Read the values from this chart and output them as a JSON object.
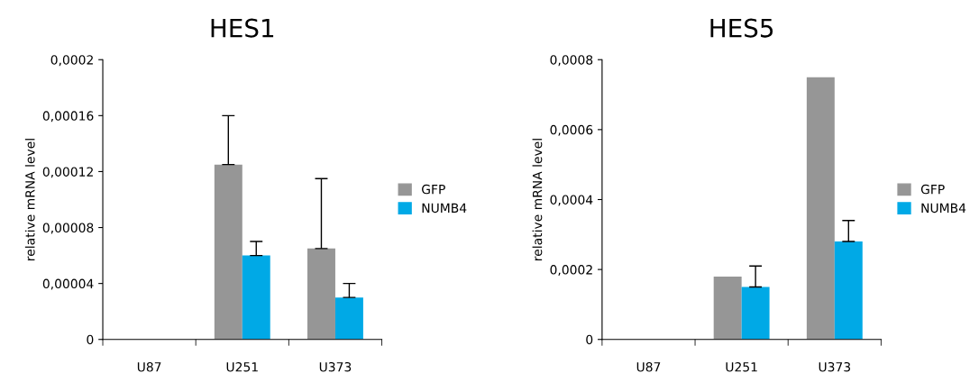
{
  "chart_data": [
    {
      "type": "bar",
      "title": "HES1",
      "ylabel": "relative mRNA level",
      "categories": [
        "U87",
        "U251",
        "U373"
      ],
      "series": [
        {
          "name": "GFP",
          "color": "#969696",
          "values": [
            0,
            0.000125,
            6.5e-05
          ],
          "errors": [
            null,
            [
              0.000125,
              0.00016
            ],
            [
              6.5e-05,
              0.000115
            ]
          ]
        },
        {
          "name": "NUMB4",
          "color": "#00a9e6",
          "values": [
            0,
            6e-05,
            3e-05
          ],
          "errors": [
            null,
            [
              6e-05,
              7e-05
            ],
            [
              3e-05,
              4e-05
            ]
          ]
        }
      ],
      "ylim": [
        0,
        0.0002
      ],
      "yticks": [
        0,
        {
          "value": 4e-05,
          "label": "0,00004"
        },
        {
          "value": 8e-05,
          "label": "0,00008"
        },
        {
          "value": 0.00012,
          "label": "0,00012"
        },
        {
          "value": 0.00016,
          "label": "0,00016"
        },
        {
          "value": 0.0002,
          "label": "0,0002"
        }
      ],
      "legend": "right",
      "grid": false
    },
    {
      "type": "bar",
      "title": "HES5",
      "ylabel": "relative mRNA level",
      "categories": [
        "U87",
        "U251",
        "U373"
      ],
      "series": [
        {
          "name": "GFP",
          "color": "#969696",
          "values": [
            0,
            0.00018,
            0.00075
          ]
        },
        {
          "name": "NUMB4",
          "color": "#00a9e6",
          "values": [
            0,
            0.00015,
            0.00028
          ],
          "errors": [
            null,
            [
              0.00015,
              0.00021
            ],
            [
              0.00028,
              0.00034
            ]
          ]
        }
      ],
      "ylim": [
        0,
        0.0008
      ],
      "yticks": [
        0,
        {
          "value": 0.0002,
          "label": "0,0002"
        },
        {
          "value": 0.0004,
          "label": "0,0004"
        },
        {
          "value": 0.0006,
          "label": "0,0006"
        },
        {
          "value": 0.0008,
          "label": "0,0008"
        }
      ],
      "legend": "right",
      "grid": false
    }
  ]
}
